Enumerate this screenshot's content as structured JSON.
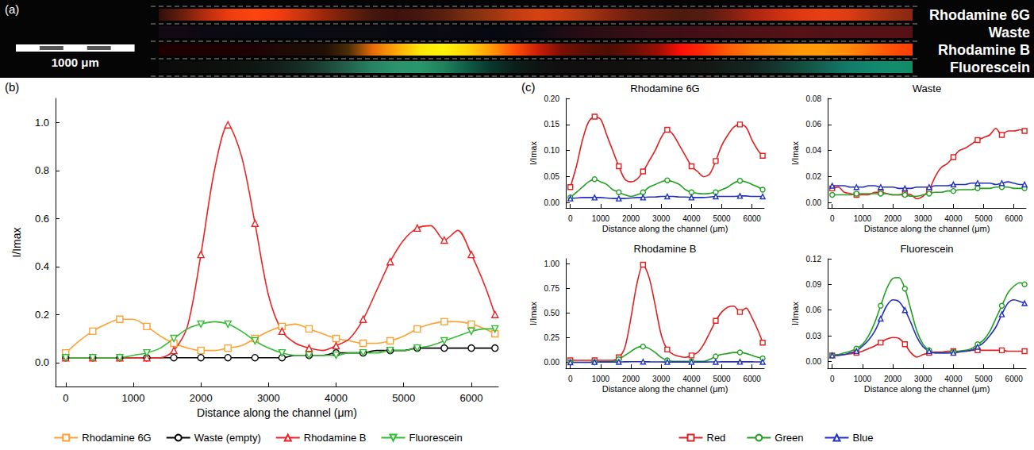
{
  "image": {
    "label": "(a)",
    "channels": [
      "Rhodamine 6G",
      "Waste",
      "Rhodamine B",
      "Fluorescein"
    ],
    "scale_bar": {
      "label": "1000 μm",
      "length": 1000
    }
  },
  "chart_data": [
    {
      "label": "(b)",
      "type": "line",
      "x_label": "Distance along the channel (μm)",
      "y_label": "I/Imax",
      "xlim": [
        -150,
        6400
      ],
      "xticks": [
        0,
        1000,
        2000,
        3000,
        4000,
        5000,
        6000
      ],
      "ylim": [
        -0.1,
        1.1
      ],
      "yticks": [
        {
          "value": 0,
          "label": "0.0"
        },
        {
          "value": 0.2,
          "label": "0.2"
        },
        {
          "value": 0.4,
          "label": "0.4"
        },
        {
          "value": 0.6,
          "label": "0.6"
        },
        {
          "value": 0.8,
          "label": "0.8"
        },
        {
          "value": 1.0,
          "label": "1.0"
        }
      ],
      "grid": false,
      "legend": "bottom",
      "x": [
        0,
        200,
        400,
        600,
        800,
        1000,
        1200,
        1400,
        1600,
        1800,
        2000,
        2200,
        2400,
        2600,
        2800,
        3000,
        3200,
        3400,
        3600,
        3800,
        4000,
        4200,
        4400,
        4600,
        4800,
        5000,
        5200,
        5400,
        5600,
        5800,
        6000,
        6200,
        6350
      ],
      "series": [
        {
          "name": "Rhodamine 6G",
          "color": "#ffa030",
          "marker": "square",
          "values": [
            0.04,
            0.09,
            0.13,
            0.16,
            0.18,
            0.18,
            0.15,
            0.11,
            0.08,
            0.06,
            0.05,
            0.05,
            0.06,
            0.07,
            0.1,
            0.13,
            0.15,
            0.16,
            0.14,
            0.12,
            0.1,
            0.09,
            0.08,
            0.08,
            0.09,
            0.11,
            0.14,
            0.16,
            0.17,
            0.17,
            0.16,
            0.14,
            0.12
          ]
        },
        {
          "name": "Waste (empty)",
          "color": "#000000",
          "marker": "circle",
          "values": [
            0.02,
            0.02,
            0.02,
            0.02,
            0.02,
            0.02,
            0.02,
            0.02,
            0.02,
            0.02,
            0.02,
            0.02,
            0.02,
            0.02,
            0.02,
            0.02,
            0.02,
            0.03,
            0.03,
            0.03,
            0.04,
            0.04,
            0.04,
            0.05,
            0.05,
            0.05,
            0.06,
            0.06,
            0.06,
            0.06,
            0.06,
            0.06,
            0.06
          ]
        },
        {
          "name": "Rhodamine B",
          "color": "#ee2222",
          "marker": "triangle",
          "values": [
            0.02,
            0.02,
            0.02,
            0.02,
            0.02,
            0.02,
            0.02,
            0.02,
            0.05,
            0.15,
            0.45,
            0.8,
            0.99,
            0.86,
            0.58,
            0.28,
            0.13,
            0.08,
            0.06,
            0.05,
            0.07,
            0.1,
            0.18,
            0.3,
            0.42,
            0.51,
            0.56,
            0.57,
            0.51,
            0.55,
            0.45,
            0.32,
            0.2
          ]
        },
        {
          "name": "Fluorescein",
          "color": "#33bb33",
          "marker": "triangle_down",
          "values": [
            0.02,
            0.02,
            0.02,
            0.02,
            0.02,
            0.03,
            0.04,
            0.06,
            0.1,
            0.14,
            0.16,
            0.17,
            0.16,
            0.13,
            0.09,
            0.06,
            0.04,
            0.03,
            0.03,
            0.03,
            0.03,
            0.04,
            0.04,
            0.04,
            0.05,
            0.05,
            0.06,
            0.07,
            0.09,
            0.11,
            0.13,
            0.14,
            0.14
          ]
        }
      ]
    },
    {
      "label": "(c)",
      "title": "Rhodamine 6G",
      "type": "line",
      "x_label": "Distance along the channel (μm)",
      "y_label": "I/Imax",
      "xlim": [
        -150,
        6400
      ],
      "xticks": [
        0,
        1000,
        2000,
        3000,
        4000,
        5000,
        6000
      ],
      "ylim": [
        -0.01,
        0.2
      ],
      "yticks": [
        {
          "value": 0,
          "label": "0.00"
        },
        {
          "value": 0.05,
          "label": "0.05"
        },
        {
          "value": 0.1,
          "label": "0.10"
        },
        {
          "value": 0.15,
          "label": "0.15"
        },
        {
          "value": 0.2,
          "label": "0.20"
        }
      ],
      "grid": false,
      "legend": "bottom",
      "x": [
        0,
        200,
        400,
        600,
        800,
        1000,
        1200,
        1400,
        1600,
        1800,
        2000,
        2200,
        2400,
        2600,
        2800,
        3000,
        3200,
        3400,
        3600,
        3800,
        4000,
        4200,
        4400,
        4600,
        4800,
        5000,
        5200,
        5400,
        5600,
        5800,
        6000,
        6200,
        6350
      ],
      "series": [
        {
          "name": "Red",
          "color": "#e02020",
          "marker": "square",
          "values": [
            0.03,
            0.07,
            0.12,
            0.155,
            0.165,
            0.16,
            0.13,
            0.1,
            0.07,
            0.045,
            0.04,
            0.045,
            0.06,
            0.08,
            0.1,
            0.125,
            0.14,
            0.13,
            0.11,
            0.09,
            0.07,
            0.06,
            0.05,
            0.055,
            0.08,
            0.11,
            0.13,
            0.145,
            0.15,
            0.145,
            0.12,
            0.1,
            0.09
          ]
        },
        {
          "name": "Green",
          "color": "#20a020",
          "marker": "circle",
          "values": [
            0.01,
            0.02,
            0.03,
            0.04,
            0.045,
            0.04,
            0.035,
            0.025,
            0.02,
            0.015,
            0.012,
            0.015,
            0.02,
            0.03,
            0.035,
            0.04,
            0.043,
            0.04,
            0.035,
            0.025,
            0.02,
            0.018,
            0.017,
            0.018,
            0.02,
            0.025,
            0.03,
            0.038,
            0.042,
            0.04,
            0.035,
            0.03,
            0.025
          ]
        },
        {
          "name": "Blue",
          "color": "#2030c0",
          "marker": "triangle",
          "values": [
            0.008,
            0.009,
            0.01,
            0.01,
            0.01,
            0.01,
            0.009,
            0.008,
            0.008,
            0.008,
            0.009,
            0.01,
            0.01,
            0.011,
            0.011,
            0.012,
            0.012,
            0.012,
            0.011,
            0.011,
            0.01,
            0.01,
            0.01,
            0.011,
            0.012,
            0.012,
            0.012,
            0.012,
            0.013,
            0.013,
            0.012,
            0.012,
            0.012
          ]
        }
      ]
    },
    {
      "title": "Waste",
      "type": "line",
      "x_label": "Distance along the channel (μm)",
      "y_label": "I/Imax",
      "xlim": [
        -150,
        6400
      ],
      "xticks": [
        0,
        1000,
        2000,
        3000,
        4000,
        5000,
        6000
      ],
      "ylim": [
        -0.004,
        0.08
      ],
      "yticks": [
        {
          "value": 0,
          "label": "0.00"
        },
        {
          "value": 0.02,
          "label": "0.02"
        },
        {
          "value": 0.04,
          "label": "0.04"
        },
        {
          "value": 0.06,
          "label": "0.06"
        },
        {
          "value": 0.08,
          "label": "0.08"
        }
      ],
      "grid": false,
      "x": [
        0,
        200,
        400,
        600,
        800,
        1000,
        1200,
        1400,
        1600,
        1800,
        2000,
        2200,
        2400,
        2600,
        2800,
        3000,
        3200,
        3400,
        3600,
        3800,
        4000,
        4200,
        4400,
        4600,
        4800,
        5000,
        5200,
        5400,
        5600,
        5800,
        6000,
        6200,
        6350
      ],
      "series": [
        {
          "name": "Red",
          "color": "#e02020",
          "marker": "square",
          "values": [
            0.011,
            0.012,
            0.008,
            0.007,
            0.006,
            0.006,
            0.006,
            0.008,
            0.008,
            0.007,
            0.006,
            0.006,
            0.007,
            0.006,
            0.003,
            0.005,
            0.01,
            0.02,
            0.027,
            0.03,
            0.035,
            0.04,
            0.042,
            0.045,
            0.048,
            0.05,
            0.052,
            0.057,
            0.052,
            0.055,
            0.055,
            0.056,
            0.055
          ]
        },
        {
          "name": "Green",
          "color": "#20a020",
          "marker": "circle",
          "values": [
            0.006,
            0.006,
            0.006,
            0.006,
            0.007,
            0.007,
            0.007,
            0.007,
            0.007,
            0.007,
            0.006,
            0.006,
            0.006,
            0.005,
            0.005,
            0.006,
            0.007,
            0.008,
            0.008,
            0.009,
            0.009,
            0.01,
            0.01,
            0.01,
            0.011,
            0.011,
            0.011,
            0.012,
            0.012,
            0.012,
            0.011,
            0.011,
            0.011
          ]
        },
        {
          "name": "Blue",
          "color": "#2030c0",
          "marker": "triangle",
          "values": [
            0.013,
            0.013,
            0.013,
            0.012,
            0.012,
            0.012,
            0.013,
            0.013,
            0.012,
            0.012,
            0.012,
            0.011,
            0.011,
            0.011,
            0.012,
            0.012,
            0.012,
            0.013,
            0.013,
            0.013,
            0.014,
            0.014,
            0.014,
            0.015,
            0.015,
            0.015,
            0.015,
            0.014,
            0.015,
            0.016,
            0.015,
            0.014,
            0.014
          ]
        }
      ]
    },
    {
      "title": "Rhodamine B",
      "type": "line",
      "x_label": "Distance along the channel (μm)",
      "y_label": "I/Imax",
      "xlim": [
        -150,
        6400
      ],
      "xticks": [
        0,
        1000,
        2000,
        3000,
        4000,
        5000,
        6000
      ],
      "ylim": [
        -0.06,
        1.05
      ],
      "yticks": [
        {
          "value": 0,
          "label": "0.00"
        },
        {
          "value": 0.25,
          "label": "0.25"
        },
        {
          "value": 0.5,
          "label": "0.50"
        },
        {
          "value": 0.75,
          "label": "0.75"
        },
        {
          "value": 1.0,
          "label": "1.00"
        }
      ],
      "grid": false,
      "x": [
        0,
        200,
        400,
        600,
        800,
        1000,
        1200,
        1400,
        1600,
        1800,
        2000,
        2200,
        2400,
        2600,
        2800,
        3000,
        3200,
        3400,
        3600,
        3800,
        4000,
        4200,
        4400,
        4600,
        4800,
        5000,
        5200,
        5400,
        5600,
        5800,
        6000,
        6200,
        6350
      ],
      "series": [
        {
          "name": "Red",
          "color": "#e02020",
          "marker": "square",
          "values": [
            0.02,
            0.02,
            0.02,
            0.02,
            0.02,
            0.02,
            0.02,
            0.02,
            0.05,
            0.15,
            0.45,
            0.8,
            0.99,
            0.86,
            0.58,
            0.28,
            0.13,
            0.08,
            0.06,
            0.05,
            0.07,
            0.1,
            0.18,
            0.3,
            0.42,
            0.51,
            0.56,
            0.57,
            0.51,
            0.55,
            0.45,
            0.32,
            0.2
          ]
        },
        {
          "name": "Green",
          "color": "#20a020",
          "marker": "circle",
          "values": [
            0.0,
            0.0,
            0.0,
            0.0,
            0.0,
            0.005,
            0.008,
            0.01,
            0.03,
            0.07,
            0.11,
            0.15,
            0.16,
            0.14,
            0.1,
            0.05,
            0.02,
            0.01,
            0.01,
            0.01,
            0.01,
            0.01,
            0.01,
            0.03,
            0.06,
            0.08,
            0.09,
            0.1,
            0.1,
            0.09,
            0.07,
            0.05,
            0.04
          ]
        },
        {
          "name": "Blue",
          "color": "#2030c0",
          "marker": "triangle",
          "values": [
            0.0,
            0.0,
            0.0,
            0.0,
            0.003,
            0.003,
            0.003,
            0.003,
            0.004,
            0.005,
            0.006,
            0.006,
            0.006,
            0.005,
            0.004,
            0.004,
            0.003,
            0.003,
            0.003,
            0.003,
            0.003,
            0.003,
            0.003,
            0.004,
            0.004,
            0.005,
            0.005,
            0.005,
            0.005,
            0.005,
            0.005,
            0.004,
            0.004
          ]
        }
      ]
    },
    {
      "title": "Fluorescein",
      "type": "line",
      "x_label": "Distance along the channel (μm)",
      "y_label": "I/Imax",
      "xlim": [
        -150,
        6400
      ],
      "xticks": [
        0,
        1000,
        2000,
        3000,
        4000,
        5000,
        6000
      ],
      "ylim": [
        -0.008,
        0.12
      ],
      "yticks": [
        {
          "value": 0,
          "label": "0.00"
        },
        {
          "value": 0.03,
          "label": "0.03"
        },
        {
          "value": 0.06,
          "label": "0.06"
        },
        {
          "value": 0.09,
          "label": "0.09"
        },
        {
          "value": 0.12,
          "label": "0.12"
        }
      ],
      "grid": false,
      "x": [
        0,
        200,
        400,
        600,
        800,
        1000,
        1200,
        1400,
        1600,
        1800,
        2000,
        2200,
        2400,
        2600,
        2800,
        3000,
        3200,
        3400,
        3600,
        3800,
        4000,
        4200,
        4400,
        4600,
        4800,
        5000,
        5200,
        5400,
        5600,
        5800,
        6000,
        6200,
        6350
      ],
      "series": [
        {
          "name": "Red",
          "color": "#e02020",
          "marker": "square",
          "values": [
            0.007,
            0.008,
            0.008,
            0.009,
            0.01,
            0.012,
            0.015,
            0.018,
            0.022,
            0.026,
            0.028,
            0.027,
            0.02,
            0.01,
            0.005,
            0.008,
            0.01,
            0.011,
            0.011,
            0.012,
            0.012,
            0.012,
            0.012,
            0.013,
            0.013,
            0.013,
            0.013,
            0.013,
            0.013,
            0.012,
            0.012,
            0.012,
            0.012
          ]
        },
        {
          "name": "Green",
          "color": "#20a020",
          "marker": "circle",
          "values": [
            0.007,
            0.008,
            0.01,
            0.012,
            0.015,
            0.02,
            0.03,
            0.045,
            0.065,
            0.085,
            0.097,
            0.098,
            0.085,
            0.06,
            0.035,
            0.02,
            0.013,
            0.01,
            0.01,
            0.01,
            0.011,
            0.012,
            0.013,
            0.015,
            0.02,
            0.025,
            0.035,
            0.05,
            0.065,
            0.08,
            0.088,
            0.092,
            0.09
          ]
        },
        {
          "name": "Blue",
          "color": "#2030c0",
          "marker": "triangle",
          "values": [
            0.007,
            0.007,
            0.008,
            0.01,
            0.012,
            0.018,
            0.025,
            0.035,
            0.05,
            0.065,
            0.072,
            0.07,
            0.06,
            0.045,
            0.028,
            0.017,
            0.012,
            0.01,
            0.01,
            0.01,
            0.01,
            0.011,
            0.012,
            0.013,
            0.017,
            0.022,
            0.03,
            0.04,
            0.055,
            0.068,
            0.072,
            0.07,
            0.068
          ]
        }
      ]
    }
  ]
}
